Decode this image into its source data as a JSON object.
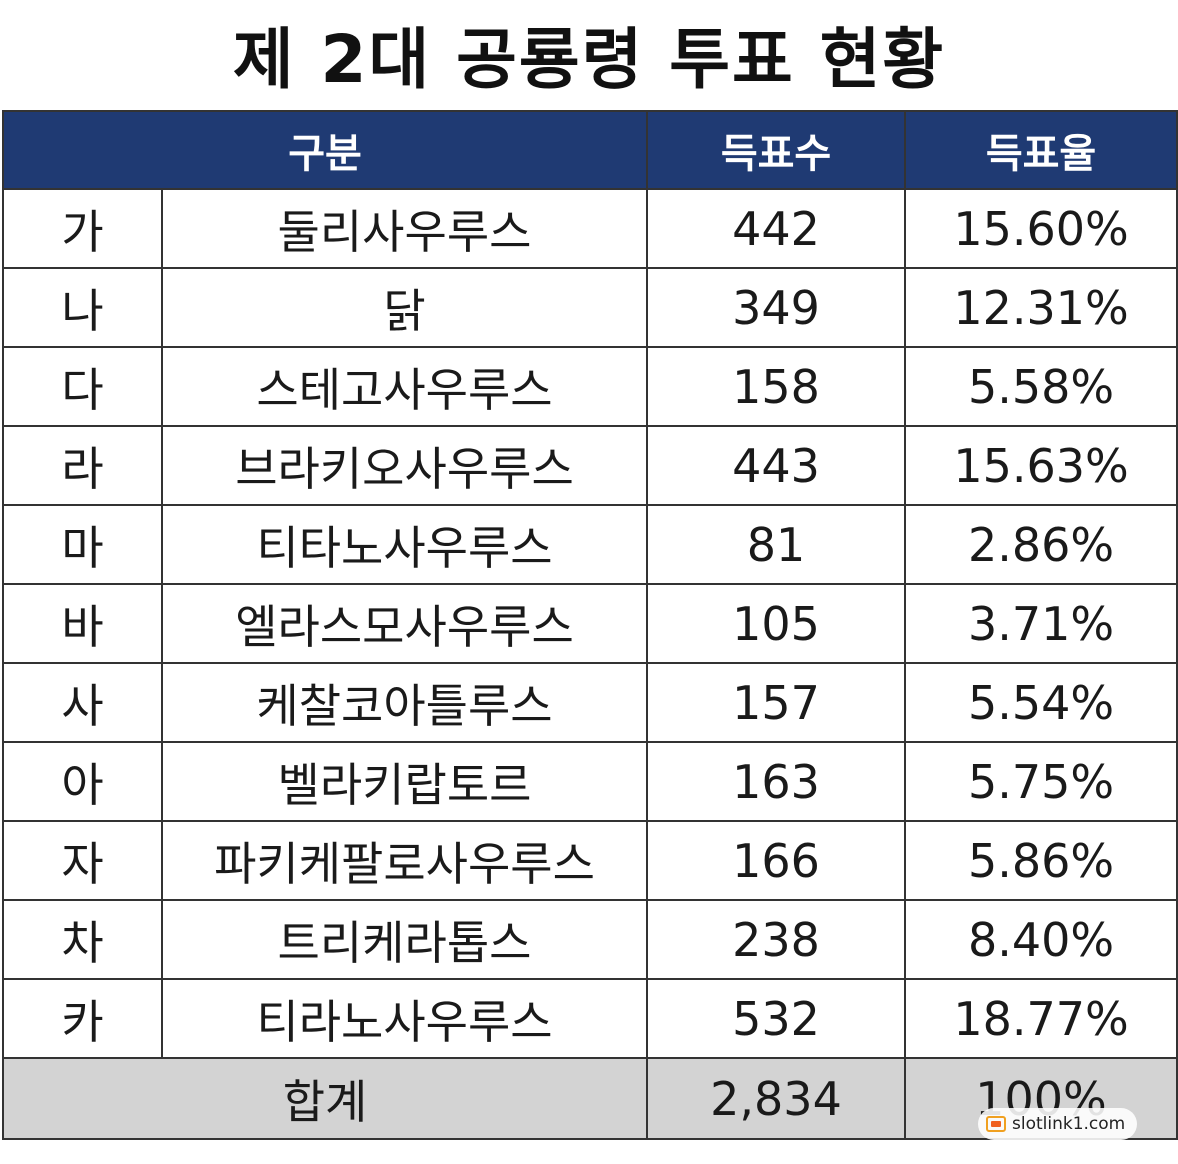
{
  "title": "제 2대 공룡령 투표 현황",
  "header": {
    "category": "구분",
    "votes": "득표수",
    "rate": "득표율"
  },
  "rows": [
    {
      "label": "가",
      "name": "둘리사우루스",
      "votes": "442",
      "rate": "15.60%"
    },
    {
      "label": "나",
      "name": "닭",
      "votes": "349",
      "rate": "12.31%"
    },
    {
      "label": "다",
      "name": "스테고사우루스",
      "votes": "158",
      "rate": "5.58%"
    },
    {
      "label": "라",
      "name": "브라키오사우루스",
      "votes": "443",
      "rate": "15.63%"
    },
    {
      "label": "마",
      "name": "티타노사우루스",
      "votes": "81",
      "rate": "2.86%"
    },
    {
      "label": "바",
      "name": "엘라스모사우루스",
      "votes": "105",
      "rate": "3.71%"
    },
    {
      "label": "사",
      "name": "케찰코아틀루스",
      "votes": "157",
      "rate": "5.54%"
    },
    {
      "label": "아",
      "name": "벨라키랍토르",
      "votes": "163",
      "rate": "5.75%"
    },
    {
      "label": "자",
      "name": "파키케팔로사우루스",
      "votes": "166",
      "rate": "5.86%"
    },
    {
      "label": "차",
      "name": "트리케라톱스",
      "votes": "238",
      "rate": "8.40%"
    },
    {
      "label": "카",
      "name": "티라노사우루스",
      "votes": "532",
      "rate": "18.77%"
    }
  ],
  "total": {
    "label": "합계",
    "votes": "2,834",
    "rate": "100%"
  },
  "watermark": {
    "text": "slotlink1.com",
    "icon": "link-icon"
  },
  "colors": {
    "header_bg": "#1f3a73",
    "total_bg": "#d3d3d3"
  }
}
